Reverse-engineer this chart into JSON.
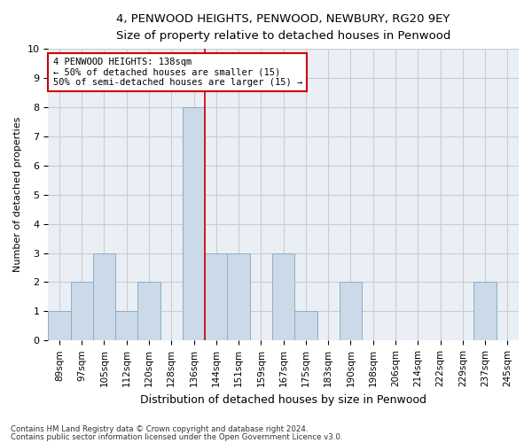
{
  "title": "4, PENWOOD HEIGHTS, PENWOOD, NEWBURY, RG20 9EY",
  "subtitle": "Size of property relative to detached houses in Penwood",
  "xlabel": "Distribution of detached houses by size in Penwood",
  "ylabel": "Number of detached properties",
  "categories": [
    "89sqm",
    "97sqm",
    "105sqm",
    "112sqm",
    "120sqm",
    "128sqm",
    "136sqm",
    "144sqm",
    "151sqm",
    "159sqm",
    "167sqm",
    "175sqm",
    "183sqm",
    "190sqm",
    "198sqm",
    "206sqm",
    "214sqm",
    "222sqm",
    "229sqm",
    "237sqm",
    "245sqm"
  ],
  "values": [
    1,
    2,
    3,
    1,
    2,
    0,
    8,
    3,
    3,
    0,
    3,
    1,
    0,
    2,
    0,
    0,
    0,
    0,
    0,
    2,
    0
  ],
  "bar_color": "#ccd9e8",
  "bar_edgecolor": "#8aafc8",
  "marker_label_lines": [
    "4 PENWOOD HEIGHTS: 138sqm",
    "← 50% of detached houses are smaller (15)",
    "50% of semi-detached houses are larger (15) →"
  ],
  "annotation_box_color": "#cc0000",
  "vline_color": "#cc0000",
  "vline_index": 6,
  "ylim": [
    0,
    10
  ],
  "yticks": [
    0,
    1,
    2,
    3,
    4,
    5,
    6,
    7,
    8,
    9,
    10
  ],
  "grid_color": "#cccccc",
  "background_color": "#eaeff5",
  "footer_line1": "Contains HM Land Registry data © Crown copyright and database right 2024.",
  "footer_line2": "Contains public sector information licensed under the Open Government Licence v3.0."
}
